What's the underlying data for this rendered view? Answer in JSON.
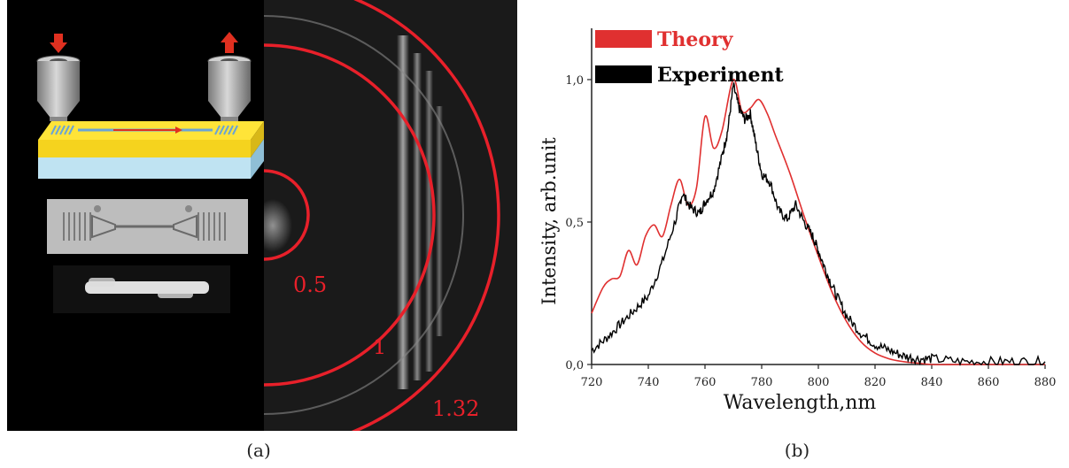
{
  "panel_a": {
    "caption": "(a)",
    "ring_labels": [
      "0.5",
      "1",
      "1.32"
    ],
    "ring_color": "#e8202a",
    "arrow_color": "#e03020",
    "waveguide_color": "#ffe438",
    "substrate_color": "#bfe3f2"
  },
  "panel_b": {
    "caption": "(b)"
  },
  "chart_data": {
    "type": "line",
    "title": "",
    "xlabel": "Wavelength,nm",
    "ylabel": "Intensity, arb.unit",
    "xlim": [
      720,
      880
    ],
    "ylim": [
      0,
      1.18
    ],
    "xticks": [
      720,
      740,
      760,
      780,
      800,
      820,
      840,
      860,
      880
    ],
    "yticks": [
      0,
      0.5,
      1.0
    ],
    "ytick_labels": [
      "0,0",
      "0,5",
      "1,0"
    ],
    "grid": false,
    "legend_position": "top-left",
    "series": [
      {
        "name": "Theory",
        "color": "#e03030",
        "x": [
          720,
          724,
          727,
          730,
          733,
          736,
          739,
          742,
          745,
          748,
          751,
          754,
          757,
          760,
          763,
          766,
          770,
          773,
          776,
          779,
          782,
          785,
          790,
          795,
          800,
          805,
          810,
          815,
          820,
          825,
          830,
          835,
          840,
          850,
          860,
          870,
          880
        ],
        "y": [
          0.18,
          0.27,
          0.3,
          0.31,
          0.4,
          0.35,
          0.45,
          0.49,
          0.45,
          0.56,
          0.65,
          0.56,
          0.62,
          0.87,
          0.76,
          0.82,
          1.0,
          0.89,
          0.9,
          0.93,
          0.88,
          0.8,
          0.67,
          0.52,
          0.38,
          0.25,
          0.15,
          0.08,
          0.04,
          0.02,
          0.01,
          0.005,
          0.0,
          0.0,
          0.0,
          0.0,
          0.0
        ]
      },
      {
        "name": "Experiment",
        "color": "#000000",
        "x": [
          720,
          725,
          730,
          735,
          740,
          745,
          750,
          752,
          755,
          758,
          760,
          763,
          766,
          768,
          770,
          772,
          774,
          776,
          778,
          780,
          783,
          786,
          789,
          792,
          795,
          798,
          800,
          803,
          806,
          810,
          815,
          820,
          825,
          830,
          835,
          840,
          850,
          860,
          870,
          880
        ],
        "y": [
          0.05,
          0.09,
          0.14,
          0.19,
          0.24,
          0.36,
          0.52,
          0.6,
          0.55,
          0.53,
          0.57,
          0.61,
          0.73,
          0.82,
          0.98,
          0.9,
          0.86,
          0.88,
          0.77,
          0.67,
          0.64,
          0.54,
          0.51,
          0.56,
          0.5,
          0.45,
          0.4,
          0.32,
          0.25,
          0.17,
          0.11,
          0.07,
          0.05,
          0.03,
          0.02,
          0.02,
          0.01,
          0.01,
          0.01,
          0.01
        ]
      }
    ]
  }
}
